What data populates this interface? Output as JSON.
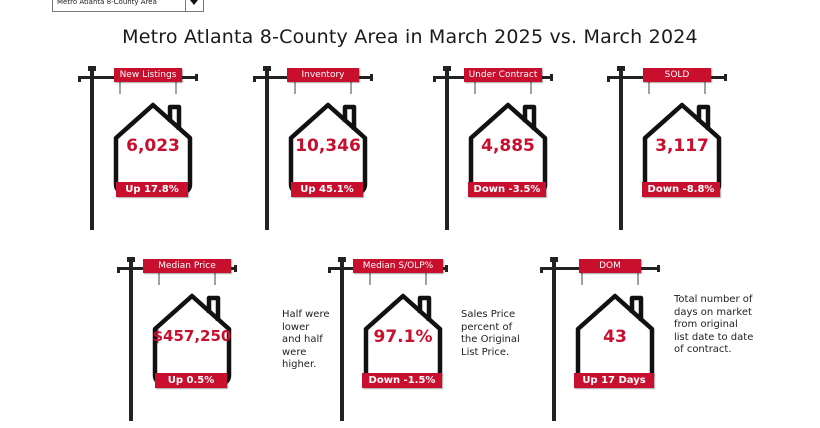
{
  "selector": {
    "value": "Metro Atlanta 8-County Area"
  },
  "title": "Metro Atlanta 8-County Area in March 2025 vs. March 2024",
  "colors": {
    "accent": "#c8102e",
    "post": "#222222"
  },
  "signs": [
    {
      "label": "New Listings",
      "value": "6,023",
      "change": "Up 17.8%"
    },
    {
      "label": "Inventory",
      "value": "10,346",
      "change": "Up 45.1%"
    },
    {
      "label": "Under Contract",
      "value": "4,885",
      "change": "Down -3.5%"
    },
    {
      "label": "SOLD",
      "value": "3,117",
      "change": "Down -8.8%"
    },
    {
      "label": "Median Price",
      "value": "$457,250",
      "change": "Up 0.5%",
      "note": "Half were lower and half were higher."
    },
    {
      "label": "Median S/OLP%",
      "value": "97.1%",
      "change": "Down -1.5%",
      "note": "Sales Price percent of the Original List Price."
    },
    {
      "label": "DOM",
      "value": "43",
      "change": "Up 17 Days",
      "note": "Total number of days on market from original list date to date of contract."
    }
  ]
}
